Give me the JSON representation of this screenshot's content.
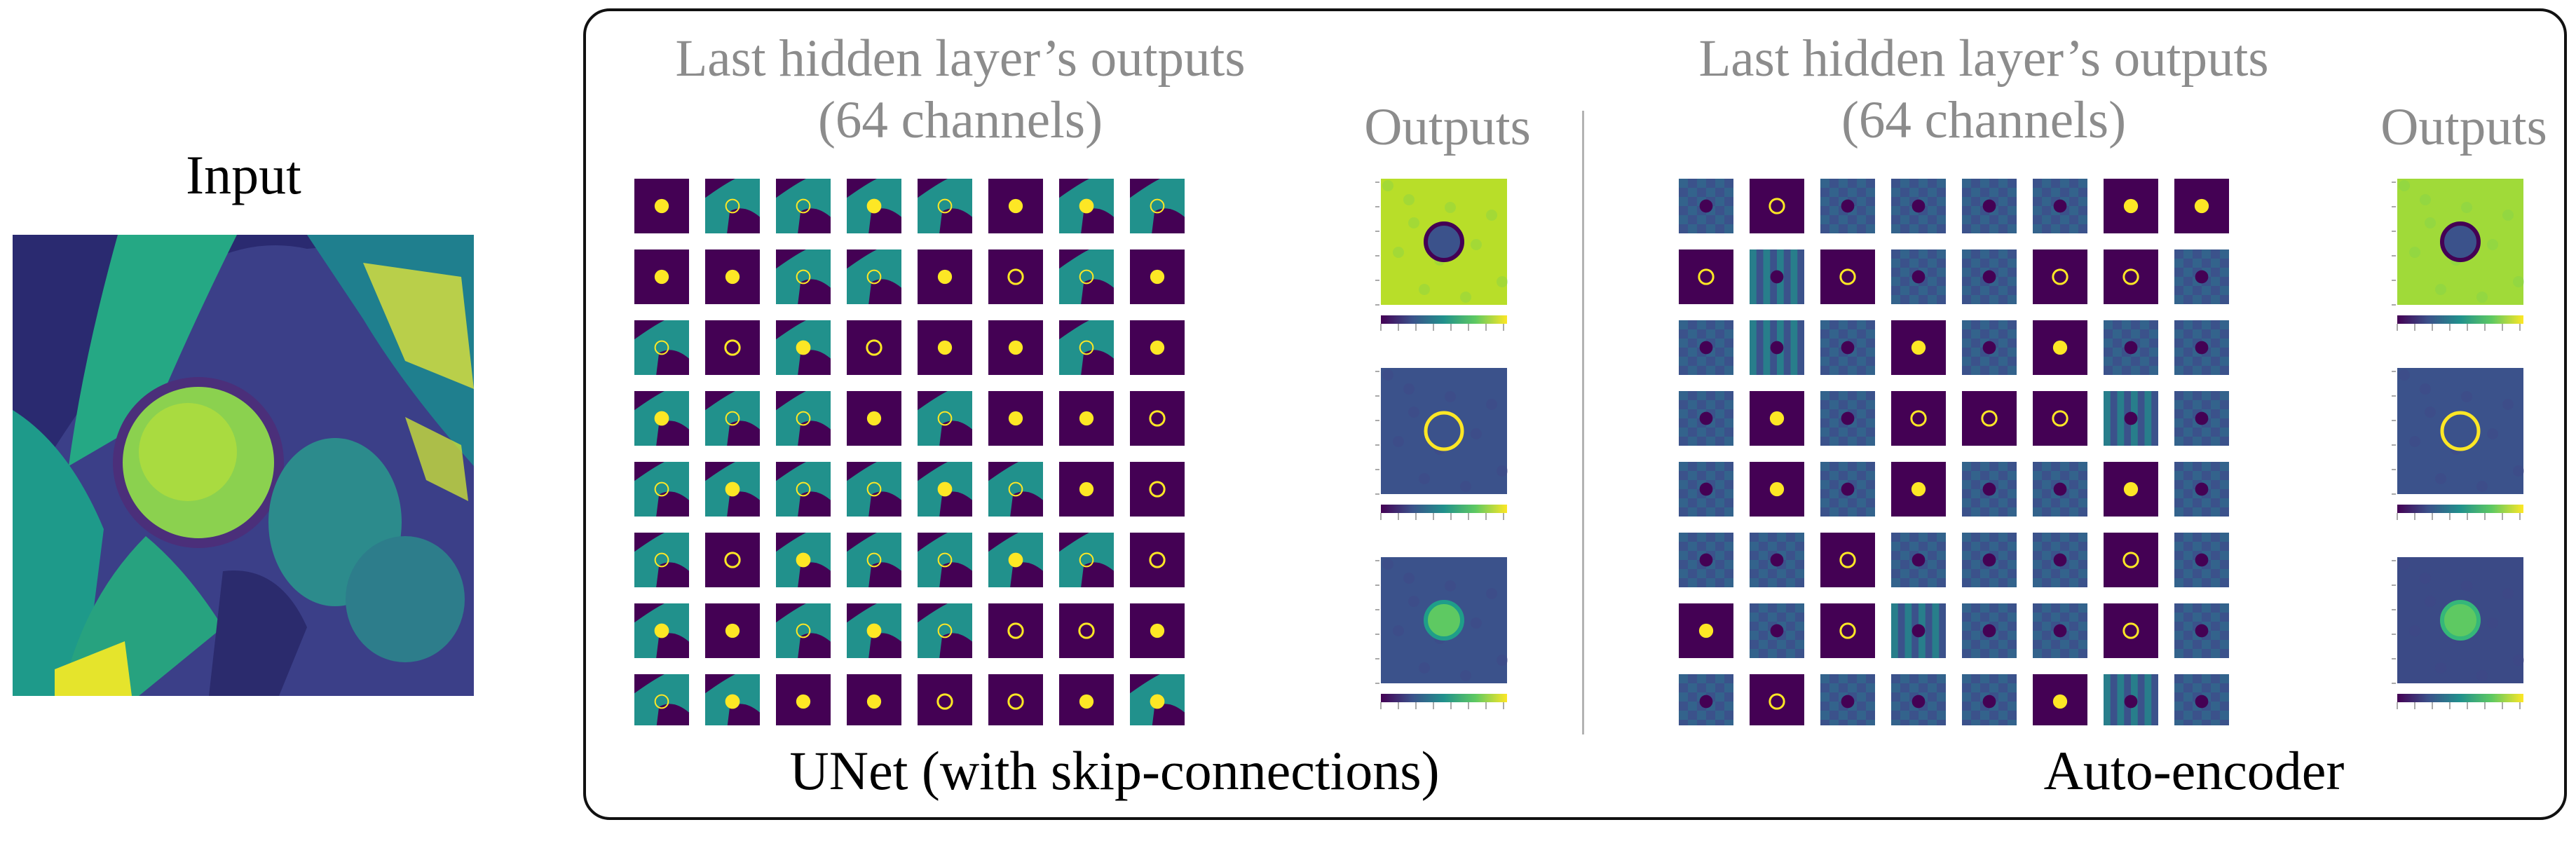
{
  "input": {
    "title": "Input"
  },
  "unet": {
    "heading_line1": "Last hidden layer’s outputs",
    "heading_line2": "(64 channels)",
    "outputs_label": "Outputs",
    "caption": "UNet (with skip-connections)"
  },
  "autoencoder": {
    "heading_line1": "Last hidden layer’s outputs",
    "heading_line2": "(64 channels)",
    "outputs_label": "Outputs",
    "caption": "Auto-encoder"
  },
  "colors": {
    "dark_purple": "#440154",
    "teal": "#21918c",
    "yellow": "#fde725",
    "navy": "#3b528b",
    "green": "#5ec962",
    "panel_border": "#111111",
    "label_grey": "#8c8c8c"
  }
}
